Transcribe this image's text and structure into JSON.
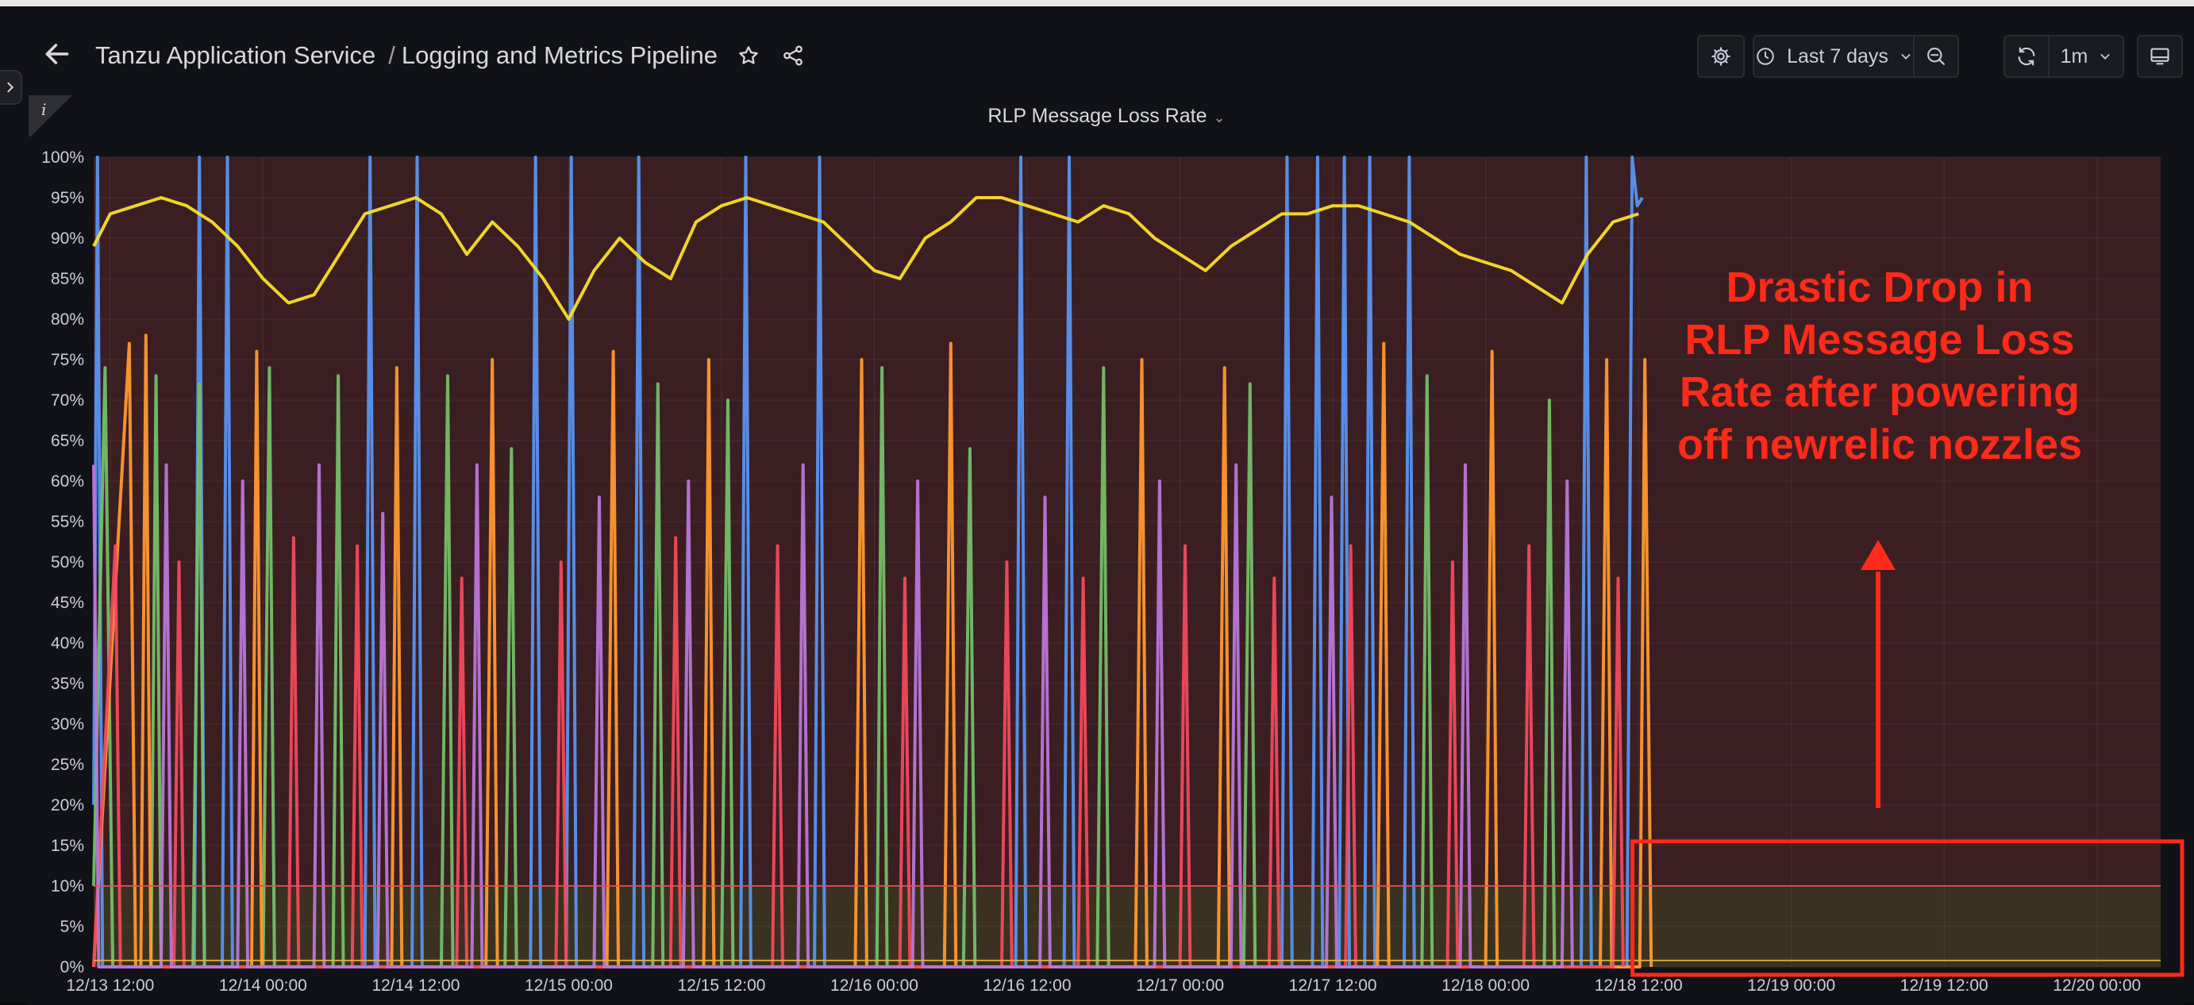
{
  "nav": {
    "folder": "Tanzu Application Service",
    "dashboard": "Logging and Metrics Pipeline",
    "separator": "/",
    "time_range": "Last 7 days",
    "refresh_interval": "1m"
  },
  "panel": {
    "title": "RLP Message Loss Rate",
    "info_glyph": "i"
  },
  "annotation": {
    "lines": [
      "Drastic Drop in",
      "RLP Message Loss",
      "Rate after powering",
      "off newrelic nozzles"
    ],
    "color": "#ff2a1a"
  },
  "chart_data": {
    "type": "line",
    "title": "RLP Message Loss Rate",
    "x_ticks": [
      "12/13 12:00",
      "12/14 00:00",
      "12/14 12:00",
      "12/15 00:00",
      "12/15 12:00",
      "12/16 00:00",
      "12/16 12:00",
      "12/17 00:00",
      "12/17 12:00",
      "12/18 00:00",
      "12/18 12:00",
      "12/19 00:00",
      "12/19 12:00",
      "12/20 00:00"
    ],
    "x_tick_hours": [
      12,
      24,
      36,
      48,
      60,
      72,
      84,
      96,
      108,
      120,
      132,
      144,
      156,
      168
    ],
    "x_range_hours": [
      10.7,
      173
    ],
    "y_ticks": [
      "0%",
      "5%",
      "10%",
      "15%",
      "20%",
      "25%",
      "30%",
      "35%",
      "40%",
      "45%",
      "50%",
      "55%",
      "60%",
      "65%",
      "70%",
      "75%",
      "80%",
      "85%",
      "90%",
      "95%",
      "100%"
    ],
    "y_range": [
      0,
      100
    ],
    "y_unit": "%",
    "drop_at_hours": 132.4,
    "thresholds": [
      {
        "value": 10,
        "color": "#e0505a",
        "region_above": "#3a1e22",
        "region_below": "#3b3120"
      },
      {
        "value": 0.8,
        "color": "#e5b33a"
      }
    ],
    "series": [
      {
        "color": "#5794f2",
        "values": [
          [
            10.7,
            20
          ],
          [
            11,
            100
          ],
          [
            11.4,
            0
          ],
          [
            18.6,
            0
          ],
          [
            19,
            100
          ],
          [
            19.4,
            0
          ],
          [
            20.8,
            0
          ],
          [
            21.2,
            100
          ],
          [
            21.6,
            0
          ],
          [
            32,
            0
          ],
          [
            32.4,
            100
          ],
          [
            32.8,
            0
          ],
          [
            35.7,
            0
          ],
          [
            36.1,
            100
          ],
          [
            36.5,
            0
          ],
          [
            45,
            0
          ],
          [
            45.4,
            100
          ],
          [
            45.8,
            0
          ],
          [
            47.8,
            0
          ],
          [
            48.2,
            100
          ],
          [
            48.6,
            0
          ],
          [
            53.1,
            0
          ],
          [
            53.5,
            100
          ],
          [
            53.9,
            0
          ],
          [
            61.5,
            0
          ],
          [
            61.9,
            100
          ],
          [
            62.3,
            0
          ],
          [
            67.3,
            0
          ],
          [
            67.7,
            100
          ],
          [
            68.1,
            0
          ],
          [
            83.1,
            0
          ],
          [
            83.5,
            100
          ],
          [
            83.9,
            0
          ],
          [
            86.9,
            0
          ],
          [
            87.3,
            100
          ],
          [
            87.7,
            0
          ],
          [
            104,
            0
          ],
          [
            104.4,
            100
          ],
          [
            104.8,
            0
          ],
          [
            106.4,
            0
          ],
          [
            106.8,
            100
          ],
          [
            107.2,
            0
          ],
          [
            108.5,
            0
          ],
          [
            108.9,
            100
          ],
          [
            109.3,
            0
          ],
          [
            110.5,
            0
          ],
          [
            110.9,
            100
          ],
          [
            111.3,
            0
          ],
          [
            113.6,
            0
          ],
          [
            114,
            100
          ],
          [
            114.4,
            0
          ],
          [
            127.5,
            0
          ],
          [
            127.9,
            100
          ],
          [
            128.3,
            0
          ],
          [
            131.1,
            0
          ],
          [
            131.5,
            100
          ],
          [
            131.9,
            94
          ],
          [
            132.3,
            95
          ]
        ]
      },
      {
        "color": "#73bf69",
        "values": [
          [
            10.7,
            10
          ],
          [
            11.6,
            74
          ],
          [
            12.2,
            0
          ],
          [
            15.2,
            0
          ],
          [
            15.6,
            73
          ],
          [
            16,
            0
          ],
          [
            18.5,
            0
          ],
          [
            19,
            72
          ],
          [
            19.4,
            0
          ],
          [
            24,
            0
          ],
          [
            24.5,
            74
          ],
          [
            24.9,
            0
          ],
          [
            29.5,
            0
          ],
          [
            29.9,
            73
          ],
          [
            30.3,
            0
          ],
          [
            38,
            0
          ],
          [
            38.5,
            73
          ],
          [
            38.9,
            0
          ],
          [
            43,
            0
          ],
          [
            43.5,
            64
          ],
          [
            43.9,
            0
          ],
          [
            54.6,
            0
          ],
          [
            55,
            72
          ],
          [
            55.4,
            0
          ],
          [
            60,
            0
          ],
          [
            60.5,
            70
          ],
          [
            60.9,
            0
          ],
          [
            72.2,
            0
          ],
          [
            72.6,
            74
          ],
          [
            73,
            0
          ],
          [
            79,
            0
          ],
          [
            79.5,
            64
          ],
          [
            79.9,
            0
          ],
          [
            89.5,
            0
          ],
          [
            90,
            74
          ],
          [
            90.4,
            0
          ],
          [
            101,
            0
          ],
          [
            101.5,
            72
          ],
          [
            101.9,
            0
          ],
          [
            115,
            0
          ],
          [
            115.4,
            73
          ],
          [
            115.8,
            0
          ],
          [
            124.6,
            0
          ],
          [
            125,
            70
          ],
          [
            125.4,
            0
          ]
        ]
      },
      {
        "color": "#ff9830",
        "values": [
          [
            10.7,
            0
          ],
          [
            13.5,
            77
          ],
          [
            14,
            0
          ],
          [
            14.4,
            0
          ],
          [
            14.8,
            78
          ],
          [
            15.2,
            0
          ],
          [
            23.1,
            0
          ],
          [
            23.5,
            76
          ],
          [
            23.9,
            0
          ],
          [
            34.1,
            0
          ],
          [
            34.5,
            74
          ],
          [
            34.9,
            0
          ],
          [
            41.5,
            0
          ],
          [
            42,
            75
          ],
          [
            42.4,
            0
          ],
          [
            51,
            0
          ],
          [
            51.5,
            76
          ],
          [
            51.9,
            0
          ],
          [
            58.6,
            0
          ],
          [
            59,
            75
          ],
          [
            59.4,
            0
          ],
          [
            70.5,
            0
          ],
          [
            71,
            75
          ],
          [
            71.4,
            0
          ],
          [
            77.5,
            0
          ],
          [
            78,
            77
          ],
          [
            78.4,
            0
          ],
          [
            92.5,
            0
          ],
          [
            93,
            75
          ],
          [
            93.4,
            0
          ],
          [
            99,
            0
          ],
          [
            99.5,
            74
          ],
          [
            99.9,
            0
          ],
          [
            111.5,
            0
          ],
          [
            112,
            77
          ],
          [
            112.4,
            0
          ],
          [
            120,
            0
          ],
          [
            120.5,
            76
          ],
          [
            120.9,
            0
          ],
          [
            129,
            0
          ],
          [
            129.5,
            75
          ],
          [
            129.9,
            0
          ],
          [
            132.1,
            0
          ],
          [
            132.5,
            75
          ],
          [
            133,
            0
          ]
        ]
      },
      {
        "color": "#f2495c",
        "values": [
          [
            10.7,
            0
          ],
          [
            12.4,
            52
          ],
          [
            12.8,
            0
          ],
          [
            17,
            0
          ],
          [
            17.4,
            50
          ],
          [
            17.8,
            0
          ],
          [
            26,
            0
          ],
          [
            26.4,
            53
          ],
          [
            26.8,
            0
          ],
          [
            31,
            0
          ],
          [
            31.4,
            52
          ],
          [
            31.8,
            0
          ],
          [
            39.2,
            0
          ],
          [
            39.6,
            48
          ],
          [
            40,
            0
          ],
          [
            47,
            0
          ],
          [
            47.4,
            50
          ],
          [
            47.8,
            0
          ],
          [
            56,
            0
          ],
          [
            56.4,
            53
          ],
          [
            56.8,
            0
          ],
          [
            64,
            0
          ],
          [
            64.4,
            52
          ],
          [
            64.8,
            0
          ],
          [
            74,
            0
          ],
          [
            74.4,
            48
          ],
          [
            74.8,
            0
          ],
          [
            82,
            0
          ],
          [
            82.4,
            50
          ],
          [
            82.8,
            0
          ],
          [
            88,
            0
          ],
          [
            88.4,
            48
          ],
          [
            88.8,
            0
          ],
          [
            96,
            0
          ],
          [
            96.4,
            52
          ],
          [
            96.8,
            0
          ],
          [
            103,
            0
          ],
          [
            103.4,
            48
          ],
          [
            103.8,
            0
          ],
          [
            109,
            0
          ],
          [
            109.4,
            52
          ],
          [
            109.8,
            0
          ],
          [
            117,
            0
          ],
          [
            117.4,
            50
          ],
          [
            117.8,
            0
          ],
          [
            123,
            0
          ],
          [
            123.4,
            52
          ],
          [
            123.8,
            0
          ],
          [
            130,
            0
          ],
          [
            130.4,
            48
          ],
          [
            130.8,
            0
          ]
        ]
      },
      {
        "color": "#b877d9",
        "values": [
          [
            10.7,
            62
          ],
          [
            11.1,
            0
          ],
          [
            16,
            0
          ],
          [
            16.4,
            62
          ],
          [
            16.8,
            0
          ],
          [
            22,
            0
          ],
          [
            22.4,
            60
          ],
          [
            22.8,
            0
          ],
          [
            28,
            0
          ],
          [
            28.4,
            62
          ],
          [
            28.8,
            0
          ],
          [
            33,
            0
          ],
          [
            33.4,
            56
          ],
          [
            33.8,
            0
          ],
          [
            40.4,
            0
          ],
          [
            40.8,
            62
          ],
          [
            41.2,
            0
          ],
          [
            50,
            0
          ],
          [
            50.4,
            58
          ],
          [
            50.8,
            0
          ],
          [
            57,
            0
          ],
          [
            57.4,
            60
          ],
          [
            57.8,
            0
          ],
          [
            66,
            0
          ],
          [
            66.4,
            62
          ],
          [
            66.8,
            0
          ],
          [
            75,
            0
          ],
          [
            75.4,
            60
          ],
          [
            75.8,
            0
          ],
          [
            85,
            0
          ],
          [
            85.4,
            58
          ],
          [
            85.8,
            0
          ],
          [
            94,
            0
          ],
          [
            94.4,
            60
          ],
          [
            94.8,
            0
          ],
          [
            100,
            0
          ],
          [
            100.4,
            62
          ],
          [
            100.8,
            0
          ],
          [
            107.5,
            0
          ],
          [
            107.9,
            58
          ],
          [
            108.3,
            0
          ],
          [
            118,
            0
          ],
          [
            118.4,
            62
          ],
          [
            118.8,
            0
          ],
          [
            126,
            0
          ],
          [
            126.4,
            60
          ],
          [
            126.8,
            0
          ]
        ]
      },
      {
        "color": "#fade2a",
        "values": [
          [
            10.7,
            89
          ],
          [
            12,
            93
          ],
          [
            14,
            94
          ],
          [
            16,
            95
          ],
          [
            18,
            94
          ],
          [
            20,
            92
          ],
          [
            22,
            89
          ],
          [
            24,
            85
          ],
          [
            26,
            82
          ],
          [
            28,
            83
          ],
          [
            30,
            88
          ],
          [
            32,
            93
          ],
          [
            34,
            94
          ],
          [
            36,
            95
          ],
          [
            38,
            93
          ],
          [
            40,
            88
          ],
          [
            42,
            92
          ],
          [
            44,
            89
          ],
          [
            46,
            85
          ],
          [
            48,
            80
          ],
          [
            50,
            86
          ],
          [
            52,
            90
          ],
          [
            54,
            87
          ],
          [
            56,
            85
          ],
          [
            58,
            92
          ],
          [
            60,
            94
          ],
          [
            62,
            95
          ],
          [
            64,
            94
          ],
          [
            66,
            93
          ],
          [
            68,
            92
          ],
          [
            70,
            89
          ],
          [
            72,
            86
          ],
          [
            74,
            85
          ],
          [
            76,
            90
          ],
          [
            78,
            92
          ],
          [
            80,
            95
          ],
          [
            82,
            95
          ],
          [
            84,
            94
          ],
          [
            86,
            93
          ],
          [
            88,
            92
          ],
          [
            90,
            94
          ],
          [
            92,
            93
          ],
          [
            94,
            90
          ],
          [
            96,
            88
          ],
          [
            98,
            86
          ],
          [
            100,
            89
          ],
          [
            102,
            91
          ],
          [
            104,
            93
          ],
          [
            106,
            93
          ],
          [
            108,
            94
          ],
          [
            110,
            94
          ],
          [
            112,
            93
          ],
          [
            114,
            92
          ],
          [
            116,
            90
          ],
          [
            118,
            88
          ],
          [
            120,
            87
          ],
          [
            122,
            86
          ],
          [
            124,
            84
          ],
          [
            126,
            82
          ],
          [
            128,
            88
          ],
          [
            130,
            92
          ],
          [
            132,
            93
          ]
        ]
      }
    ]
  }
}
